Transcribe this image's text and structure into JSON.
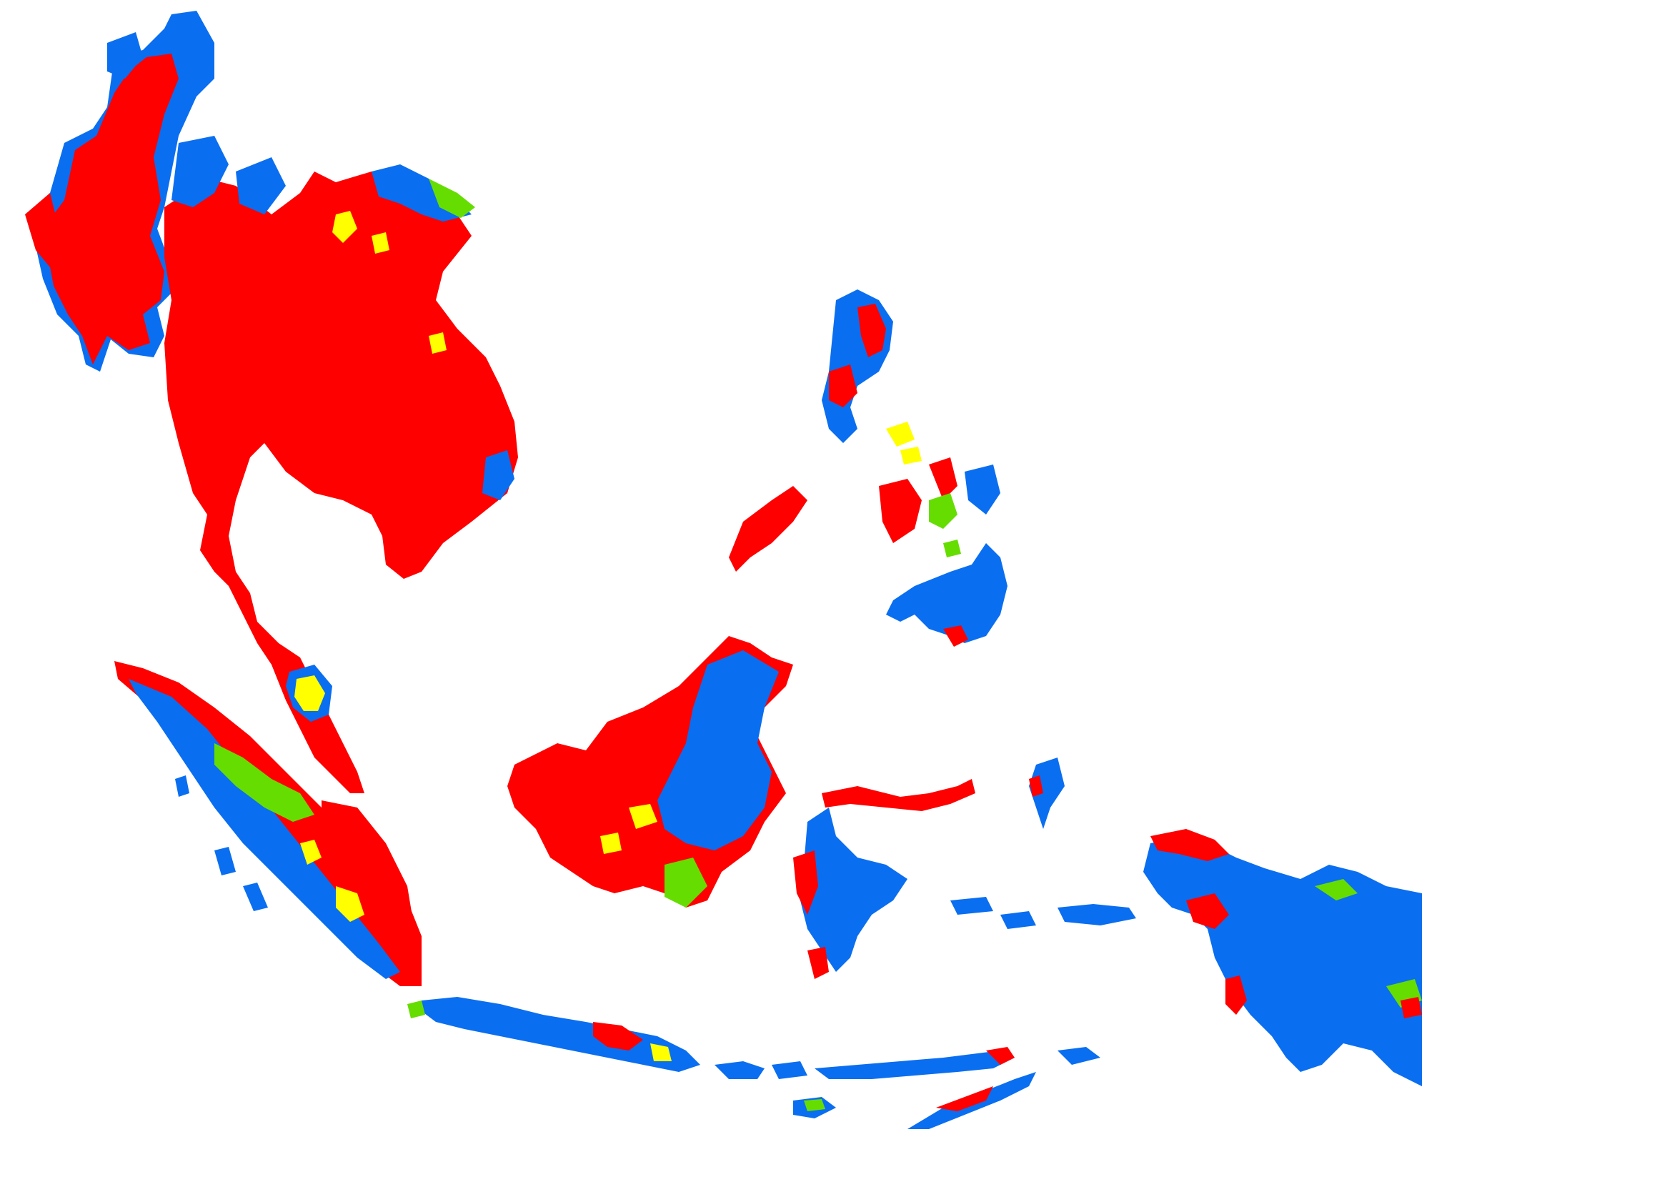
{
  "map": {
    "kind": "suitability classification raster, Southeast Asia",
    "background": "#ffffff",
    "classes": [
      {
        "id": "red",
        "color": "#ff0000"
      },
      {
        "id": "yellow",
        "color": "#ffff00"
      },
      {
        "id": "green",
        "color": "#66dd00"
      },
      {
        "id": "blue",
        "color": "#0a6ef0"
      }
    ],
    "regions": [
      {
        "name": "myanmar"
      },
      {
        "name": "thailand-laos-cambodia-vietnam"
      },
      {
        "name": "malay-peninsula"
      },
      {
        "name": "sumatra"
      },
      {
        "name": "borneo"
      },
      {
        "name": "luzon"
      },
      {
        "name": "visayas"
      },
      {
        "name": "mindanao"
      },
      {
        "name": "sulawesi"
      },
      {
        "name": "java"
      },
      {
        "name": "lesser-sunda-islands"
      },
      {
        "name": "maluku"
      },
      {
        "name": "new-guinea"
      }
    ]
  }
}
